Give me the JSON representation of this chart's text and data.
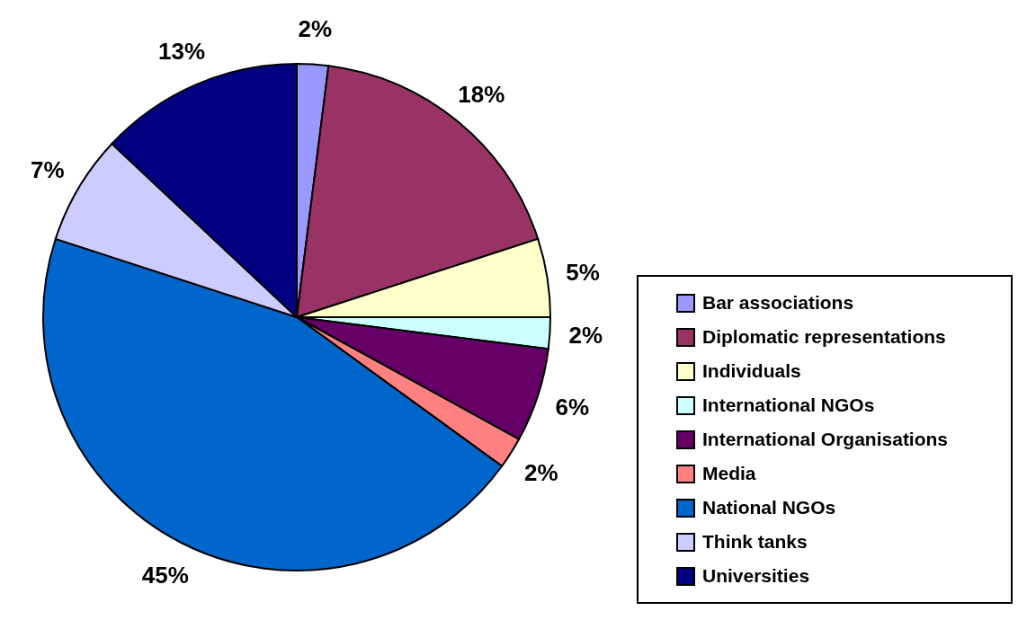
{
  "chart_data": {
    "type": "pie",
    "categories": [
      "Bar associations",
      "Diplomatic representations",
      "Individuals",
      "International NGOs",
      "International Organisations",
      "Media",
      "National NGOs",
      "Think tanks",
      "Universities"
    ],
    "values": [
      2,
      18,
      5,
      2,
      6,
      2,
      45,
      7,
      13
    ],
    "colors": [
      "#9999ff",
      "#993366",
      "#ffffcc",
      "#ccffff",
      "#660066",
      "#ff8080",
      "#0066cc",
      "#ccccff",
      "#000080"
    ],
    "value_labels": [
      "2%",
      "18%",
      "5%",
      "2%",
      "6%",
      "2%",
      "45%",
      "7%",
      "13%"
    ],
    "legend": "right"
  }
}
